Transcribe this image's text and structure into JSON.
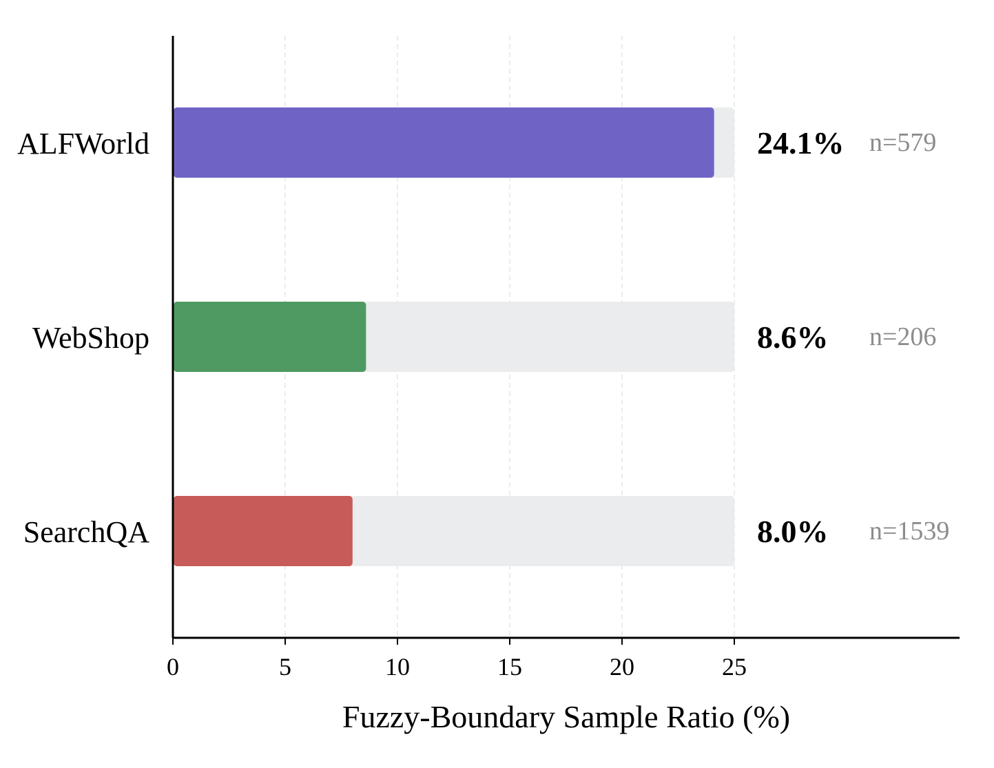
{
  "chart_data": {
    "type": "bar",
    "orientation": "horizontal",
    "categories": [
      "ALFWorld",
      "WebShop",
      "SearchQA"
    ],
    "values": [
      24.1,
      8.6,
      8.0
    ],
    "value_labels": [
      "24.1%",
      "8.6%",
      "8.0%"
    ],
    "sample_counts": [
      "n=579",
      "n=206",
      "n=1539"
    ],
    "colors": [
      "#6f64c6",
      "#4e9a62",
      "#c75b5a"
    ],
    "background_track_color": "#ebeced",
    "background_track_max": 25,
    "title": "",
    "xlabel": "Fuzzy-Boundary Sample Ratio (%)",
    "ylabel": "",
    "xlim": [
      0,
      35
    ],
    "xticks": [
      0,
      5,
      10,
      15,
      20,
      25
    ],
    "xtick_labels": [
      "0",
      "5",
      "10",
      "15",
      "20",
      "25"
    ],
    "grid": "vertical dashed",
    "legend": "none"
  }
}
